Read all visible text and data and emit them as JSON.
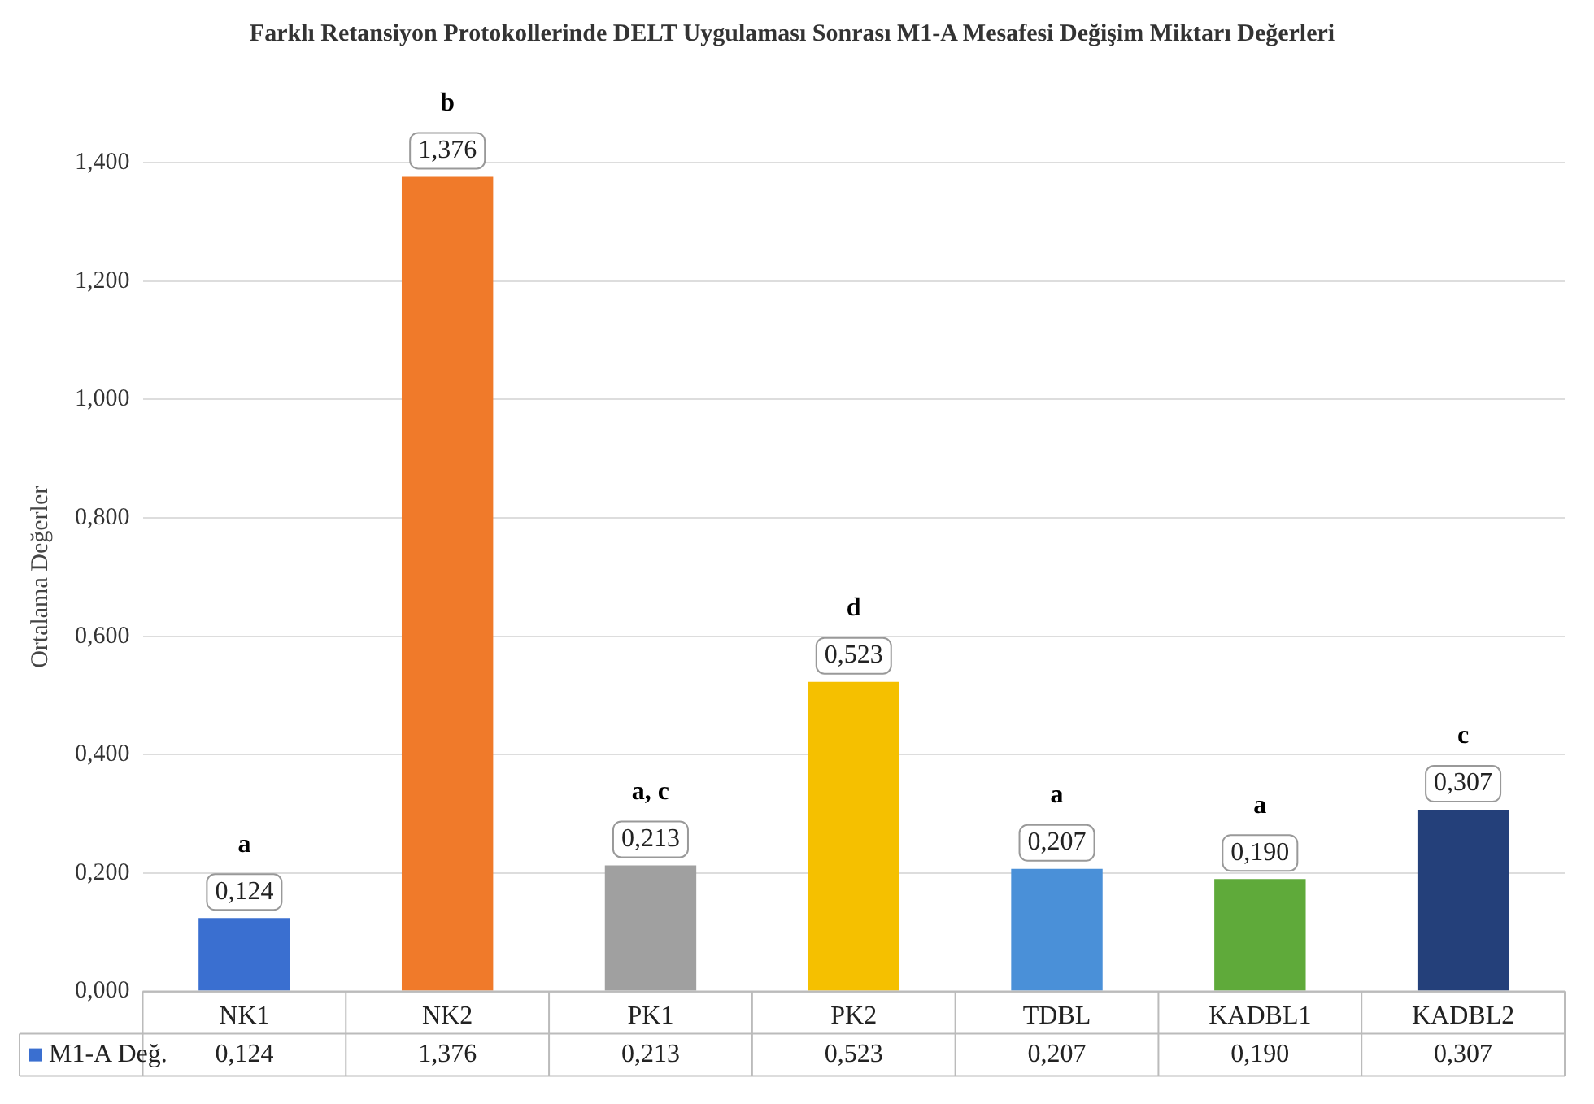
{
  "chart_data": {
    "type": "bar",
    "title": "Farklı Retansiyon Protokollerinde DELT Uygulaması Sonrası M1-A Mesafesi Değişim Miktarı Değerleri",
    "ylabel": "Ortalama Değerler",
    "categories": [
      "NK1",
      "NK2",
      "PK1",
      "PK2",
      "TDBL",
      "KADBL1",
      "KADBL2"
    ],
    "series": [
      {
        "name": "M1-A Değ.",
        "color": "#3a6fd0",
        "colors": [
          "#3a6fd0",
          "#f07a2a",
          "#a0a0a0",
          "#f5c000",
          "#4a90d8",
          "#5faa3a",
          "#24407a"
        ],
        "values": [
          0.124,
          1.376,
          0.213,
          0.523,
          0.207,
          0.19,
          0.307
        ],
        "value_labels": [
          "0,124",
          "1,376",
          "0,213",
          "0,523",
          "0,207",
          "0,190",
          "0,307"
        ]
      }
    ],
    "ylim": [
      0,
      1.4
    ],
    "yticks": [
      {
        "value": 0,
        "label": "0,000"
      },
      {
        "value": 0.2,
        "label": "0,200"
      },
      {
        "value": 0.4,
        "label": "0,400"
      },
      {
        "value": 0.6,
        "label": "0,600"
      },
      {
        "value": 0.8,
        "label": "0,800"
      },
      {
        "value": 1,
        "label": "1,000"
      },
      {
        "value": 1.2,
        "label": "1,200"
      },
      {
        "value": 1.4,
        "label": "1,400"
      }
    ],
    "grid": "y",
    "legend": "bottom",
    "annotations": [
      {
        "text": "a",
        "x": "NK1",
        "y": 0.124
      },
      {
        "text": "b",
        "x": "NK2",
        "y": 1.376
      },
      {
        "text": "a, c",
        "x": "PK1",
        "y": 0.213
      },
      {
        "text": "d",
        "x": "PK2",
        "y": 0.523
      },
      {
        "text": "a",
        "x": "TDBL",
        "y": 0.207
      },
      {
        "text": "a",
        "x": "KADBL1",
        "y": 0.19
      },
      {
        "text": "c",
        "x": "KADBL2",
        "y": 0.307
      }
    ]
  }
}
